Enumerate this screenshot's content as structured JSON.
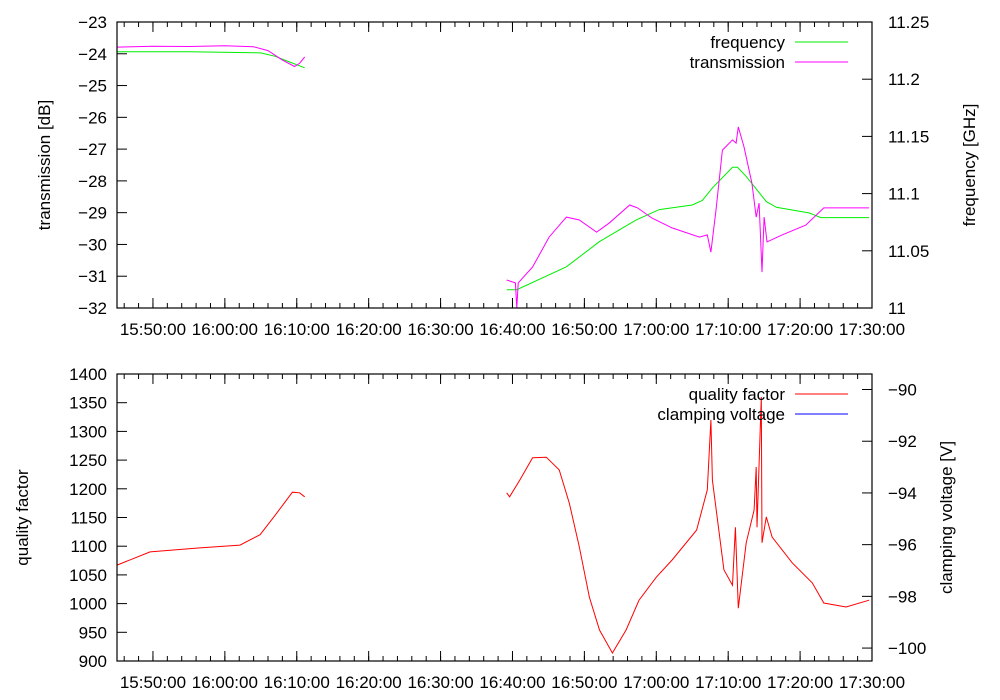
{
  "chart_data": [
    {
      "type": "line",
      "x_unit": "minutes after 15:45:00",
      "x_origin": "15:45:00",
      "xlim": [
        0,
        105
      ],
      "x_ticks": [
        5,
        15,
        25,
        35,
        45,
        55,
        65,
        75,
        85,
        95,
        105
      ],
      "x_tick_labels": [
        "15:50:00",
        "16:00:00",
        "16:10:00",
        "16:20:00",
        "16:30:00",
        "16:40:00",
        "16:50:00",
        "17:00:00",
        "17:10:00",
        "17:20:00",
        "17:30:00"
      ],
      "ylabel": "transmission [dB]",
      "ylim": [
        -32,
        -23
      ],
      "y_ticks": [
        -23,
        -24,
        -25,
        -26,
        -27,
        -28,
        -29,
        -30,
        -31,
        -32
      ],
      "y_tick_labels": [
        "−23",
        "−24",
        "−25",
        "−26",
        "−27",
        "−28",
        "−29",
        "−30",
        "−31",
        "−32"
      ],
      "y2label": "frequency [GHz]",
      "y2lim": [
        11,
        11.25
      ],
      "y2_ticks": [
        11,
        11.05,
        11.1,
        11.15,
        11.2,
        11.25
      ],
      "y2_tick_labels": [
        "11",
        "11.05",
        "11.1",
        "11.15",
        "11.2",
        "11.25"
      ],
      "legend_position": "top-right",
      "series": [
        {
          "name": "frequency",
          "axis": "right",
          "color": "#00ee00",
          "segments": [
            [
              [
                0,
                11.224
              ],
              [
                10,
                11.224
              ],
              [
                20,
                11.223
              ],
              [
                22,
                11.22
              ],
              [
                24,
                11.215
              ],
              [
                26.1,
                11.21
              ]
            ],
            [
              [
                54.2,
                11.016
              ],
              [
                55.6,
                11.016
              ],
              [
                62.5,
                11.036
              ],
              [
                67.1,
                11.058
              ],
              [
                72.2,
                11.077
              ],
              [
                75.4,
                11.086
              ],
              [
                80,
                11.09
              ],
              [
                81.4,
                11.094
              ],
              [
                82.8,
                11.105
              ],
              [
                85.6,
                11.123
              ],
              [
                86.3,
                11.123
              ],
              [
                87.5,
                11.115
              ],
              [
                90.3,
                11.093
              ],
              [
                91.7,
                11.088
              ],
              [
                96.3,
                11.083
              ],
              [
                97.9,
                11.079
              ],
              [
                104.6,
                11.079
              ]
            ]
          ]
        },
        {
          "name": "transmission",
          "axis": "left",
          "color": "#ff00ff",
          "segments": [
            [
              [
                0,
                -23.79
              ],
              [
                5,
                -23.76
              ],
              [
                10,
                -23.77
              ],
              [
                15,
                -23.75
              ],
              [
                19,
                -23.78
              ],
              [
                21,
                -23.9
              ],
              [
                23,
                -24.2
              ],
              [
                24.7,
                -24.4
              ],
              [
                25.4,
                -24.3
              ],
              [
                26.1,
                -24.1
              ]
            ],
            [
              [
                54.2,
                -31.12
              ],
              [
                55.4,
                -31.21
              ],
              [
                55.6,
                -32.0
              ],
              [
                55.8,
                -31.21
              ],
              [
                57.8,
                -30.71
              ],
              [
                60.1,
                -29.77
              ],
              [
                62.5,
                -29.14
              ],
              [
                64.3,
                -29.23
              ],
              [
                66.7,
                -29.61
              ],
              [
                68.5,
                -29.32
              ],
              [
                71.3,
                -28.76
              ],
              [
                72.4,
                -28.85
              ],
              [
                74.4,
                -29.17
              ],
              [
                77.2,
                -29.48
              ],
              [
                81.0,
                -29.77
              ],
              [
                82.1,
                -29.7
              ],
              [
                82.6,
                -30.24
              ],
              [
                83.3,
                -28.92
              ],
              [
                84.2,
                -27.03
              ],
              [
                85.6,
                -26.71
              ],
              [
                86.1,
                -26.81
              ],
              [
                86.4,
                -26.3
              ],
              [
                87.2,
                -26.93
              ],
              [
                88.3,
                -28.07
              ],
              [
                88.9,
                -29.14
              ],
              [
                89.3,
                -28.7
              ],
              [
                89.7,
                -30.87
              ],
              [
                90.0,
                -29.14
              ],
              [
                90.4,
                -29.92
              ],
              [
                92.5,
                -29.7
              ],
              [
                95.8,
                -29.39
              ],
              [
                98.3,
                -28.85
              ],
              [
                104.6,
                -28.85
              ]
            ]
          ]
        }
      ]
    },
    {
      "type": "line",
      "x_unit": "minutes after 15:45:00",
      "x_origin": "15:45:00",
      "xlim": [
        0,
        105
      ],
      "x_ticks": [
        5,
        15,
        25,
        35,
        45,
        55,
        65,
        75,
        85,
        95,
        105
      ],
      "x_tick_labels": [
        "15:50:00",
        "16:00:00",
        "16:10:00",
        "16:20:00",
        "16:30:00",
        "16:40:00",
        "16:50:00",
        "17:00:00",
        "17:10:00",
        "17:20:00",
        "17:30:00"
      ],
      "ylabel": "quality factor",
      "ylim": [
        900,
        1400
      ],
      "y_ticks": [
        900,
        950,
        1000,
        1050,
        1100,
        1150,
        1200,
        1250,
        1300,
        1350,
        1400
      ],
      "y_tick_labels": [
        "900",
        "950",
        "1000",
        "1050",
        "1100",
        "1150",
        "1200",
        "1250",
        "1300",
        "1350",
        "1400"
      ],
      "y2label": "clamping voltage [V]",
      "y2lim": [
        -100.5,
        -89.4
      ],
      "y2_ticks": [
        -90,
        -92,
        -94,
        -96,
        -98,
        -100
      ],
      "y2_tick_labels": [
        "−90",
        "−92",
        "−94",
        "−96",
        "−98",
        "−100"
      ],
      "legend_position": "top-right",
      "series": [
        {
          "name": "quality factor",
          "axis": "left",
          "color": "#ff0000",
          "segments": [
            [
              [
                0,
                1067
              ],
              [
                4.6,
                1090
              ],
              [
                11.5,
                1097
              ],
              [
                17.1,
                1102
              ],
              [
                19.9,
                1120
              ],
              [
                22,
                1154
              ],
              [
                24.4,
                1194
              ],
              [
                25.4,
                1193
              ],
              [
                26.1,
                1186
              ]
            ],
            [
              [
                54.2,
                1193
              ],
              [
                54.6,
                1186
              ],
              [
                56,
                1215
              ],
              [
                57.8,
                1254
              ],
              [
                59.7,
                1255
              ],
              [
                61.5,
                1233
              ],
              [
                62.9,
                1175
              ],
              [
                64.3,
                1099
              ],
              [
                65.7,
                1011
              ],
              [
                67.1,
                954
              ],
              [
                68.9,
                914
              ],
              [
                70.8,
                954
              ],
              [
                72.6,
                1006
              ],
              [
                75,
                1046
              ],
              [
                77.2,
                1076
              ],
              [
                80.6,
                1128
              ],
              [
                82.1,
                1198
              ],
              [
                82.6,
                1320
              ],
              [
                82.8,
                1215
              ],
              [
                84.4,
                1059
              ],
              [
                85.6,
                1032
              ],
              [
                86,
                1133
              ],
              [
                86.4,
                992
              ],
              [
                87.5,
                1106
              ],
              [
                88.6,
                1163
              ],
              [
                88.9,
                1238
              ],
              [
                89,
                1133
              ],
              [
                89.6,
                1360
              ],
              [
                89.7,
                1106
              ],
              [
                90.3,
                1151
              ],
              [
                91.1,
                1116
              ],
              [
                93.9,
                1071
              ],
              [
                96.7,
                1036
              ],
              [
                98.3,
                1001
              ],
              [
                101.4,
                994
              ],
              [
                104.6,
                1006
              ]
            ]
          ]
        },
        {
          "name": "clamping voltage",
          "axis": "right",
          "color": "#0000ff",
          "segments": []
        }
      ]
    }
  ]
}
